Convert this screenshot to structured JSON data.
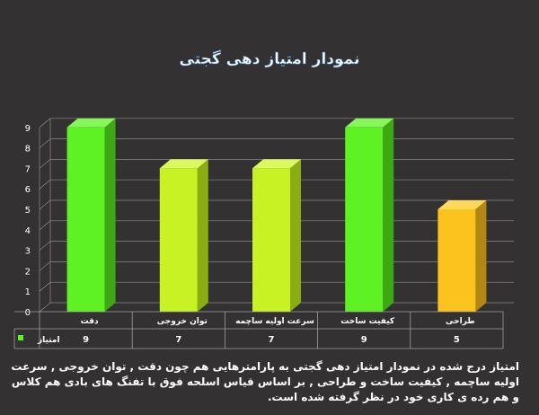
{
  "chart_data": {
    "type": "bar",
    "title": "نمودار امتیاز دهی گجتی",
    "categories": [
      "دقت",
      "توان خروجی",
      "سرعت اولیه ساچمه",
      "کیفیت ساخت",
      "طراحی"
    ],
    "series": [
      {
        "name": "امتیاز",
        "values": [
          9,
          7,
          7,
          9,
          5
        ]
      }
    ],
    "ylim": [
      0,
      9
    ],
    "yticks": [
      0,
      1,
      2,
      3,
      4,
      5,
      6,
      7,
      8,
      9
    ],
    "bar_colors": [
      "#5ef224",
      "#c8f224",
      "#c8f224",
      "#5ef224",
      "#fcc31f"
    ],
    "bar_side_colors": [
      "#3da814",
      "#8aad14",
      "#8aad14",
      "#3da814",
      "#b38712"
    ],
    "bar_top_colors": [
      "#86f85c",
      "#dcf860",
      "#dcf860",
      "#86f85c",
      "#fdd85a"
    ],
    "legend_color": "#5ef224",
    "grid": true,
    "legend": "data-table"
  },
  "caption": "امتیاز درج شده در نمودار امتیاز دهی گجتی به پارامترهایی هم چون دقت , توان خروجی , سرعت اولیه ساچمه , کیفیت ساخت و طراحی , بر اساس قیاس اسلحه فوق با تفنگ های بادی هم کلاس و هم رده ی کاری خود در نظر گرفته شده است."
}
